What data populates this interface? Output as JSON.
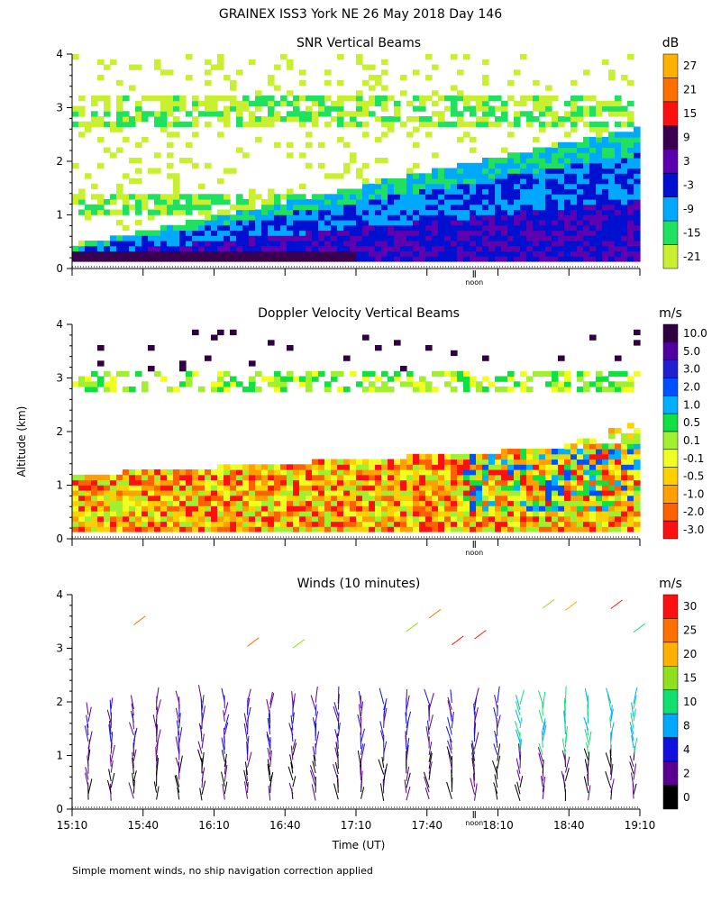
{
  "title": "GRAINEX ISS3 York NE  26 May 2018 Day 146",
  "footer": "Simple moment winds, no ship navigation correction applied",
  "shared": {
    "y_label": "Altitude (km)",
    "x_label": "Time (UT)",
    "noon_label": "noon",
    "x_ticks": [
      "15:10",
      "15:40",
      "16:10",
      "16:40",
      "17:10",
      "17:40",
      "18:10",
      "18:40",
      "19:10"
    ],
    "y_ticks": [
      "0",
      "1",
      "2",
      "3",
      "4"
    ]
  },
  "chart_data": [
    {
      "type": "heatmap",
      "title": "SNR Vertical Beams",
      "unit": "dB",
      "ylim": [
        0,
        4
      ],
      "legend_labels": [
        "27",
        "21",
        "15",
        "9",
        "3",
        "-3",
        "-9",
        "-15",
        "-21"
      ],
      "legend_colors": [
        "#ffb000",
        "#ff7000",
        "#ff1010",
        "#3a0050",
        "#5c00b0",
        "#0010d0",
        "#00a8ff",
        "#20e060",
        "#c8f030"
      ]
    },
    {
      "type": "heatmap",
      "title": "Doppler Velocity Vertical Beams",
      "unit": "m/s",
      "ylim": [
        0,
        4
      ],
      "legend_labels": [
        "10.0",
        "5.0",
        "3.0",
        "2.0",
        "1.0",
        "0.5",
        "0.1",
        "-0.1",
        "-0.5",
        "-1.0",
        "-2.0",
        "-3.0"
      ],
      "legend_colors": [
        "#300040",
        "#5000a0",
        "#2020d0",
        "#0050ff",
        "#00b0ff",
        "#10e040",
        "#a0f030",
        "#f0ff20",
        "#ffd000",
        "#ffa000",
        "#ff6000",
        "#ff1010"
      ]
    },
    {
      "type": "scatter",
      "title": "Winds (10 minutes)",
      "unit": "m/s",
      "ylim": [
        0,
        4
      ],
      "legend_labels": [
        "30",
        "25",
        "20",
        "15",
        "10",
        "8",
        "4",
        "2",
        "0"
      ],
      "legend_colors": [
        "#ff1010",
        "#ff7000",
        "#ffb000",
        "#90e020",
        "#10e070",
        "#00a8ff",
        "#1010e0",
        "#5a0090",
        "#000000"
      ]
    }
  ]
}
